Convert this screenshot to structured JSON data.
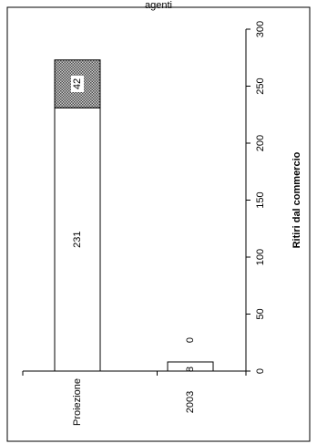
{
  "page": {
    "title": "agenti"
  },
  "chart_data": {
    "type": "bar",
    "orientation": "horizontal",
    "stacked": true,
    "rotated_page": true,
    "categories": [
      "Proiezione",
      "2003"
    ],
    "series": [
      {
        "values": [
          231,
          8
        ],
        "color": "#ffffff",
        "pattern": "none"
      },
      {
        "values": [
          42,
          0
        ],
        "color": "#9a9a9a",
        "pattern": "checker"
      }
    ],
    "data_labels": [
      [
        "231",
        "8"
      ],
      [
        "42",
        "0"
      ]
    ],
    "xlabel": "Ritiri dal commercio",
    "ylabel": "",
    "xlim": [
      0,
      300
    ],
    "ticks": [
      0,
      50,
      100,
      150,
      200,
      250,
      300
    ],
    "tick_labels": [
      "0",
      "50",
      "100",
      "150",
      "200",
      "250",
      "300"
    ],
    "grid": false,
    "legend": "none"
  }
}
